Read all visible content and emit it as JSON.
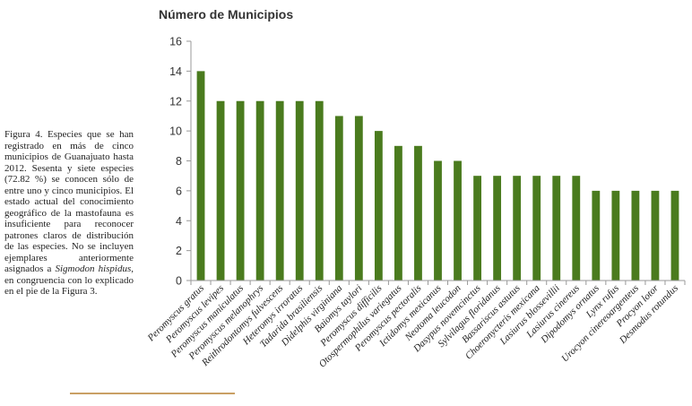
{
  "caption": {
    "label": "Figura 4.",
    "text_before": "Especies que se han registrado en más de cinco municipios de Guanajuato hasta 2012. Sesenta y siete especies (72.82 %) se conocen sólo de entre uno y cinco municipios. El estado actual del conocimiento geográfico de la mastofauna es insuficiente para reconocer patrones claros de distribución de las especies. No se incluyen ejemplares anteriormente asignados a",
    "species_italic": "Sigmodon hispidus",
    "text_after": ", en congruencia con lo explicado en el pie de la Figura 3."
  },
  "chart_data": {
    "type": "bar",
    "title": "Número de Municipios",
    "xlabel": "",
    "ylabel": "",
    "ylim": [
      0,
      16
    ],
    "yticks": [
      0,
      2,
      4,
      6,
      8,
      10,
      12,
      14,
      16
    ],
    "grid": false,
    "bar_color": "#4a7b1e",
    "categories": [
      "Peromyscus gratus",
      "Peromyscus levipes",
      "Peromyscus maniculatus",
      "Peromyscus melanophrys",
      "Reithrodontomys fulvescens",
      "Heteromys irroratus",
      "Tadarida brasiliensis",
      "Didelphis virginiana",
      "Baiomys taylori",
      "Peromyscus difficilis",
      "Otospermophilus variegatus",
      "Peromyscus pectoralis",
      "Ictidomys mexicanus",
      "Neotoma leucodon",
      "Dasypus novemcinctus",
      "Sylvilagus floridanus",
      "Bassariscus astutus",
      "Choeronycteris mexicana",
      "Lasiurus blossevillii",
      "Lasiurus cinereus",
      "Dipodomys ornatus",
      "Lynx rufus",
      "Urocyon cinereoargenteus",
      "Procyon lotor",
      "Desmodus rotundus"
    ],
    "values": [
      14,
      12,
      12,
      12,
      12,
      12,
      12,
      11,
      11,
      10,
      9,
      9,
      8,
      8,
      7,
      7,
      7,
      7,
      7,
      7,
      6,
      6,
      6,
      6,
      6
    ]
  }
}
